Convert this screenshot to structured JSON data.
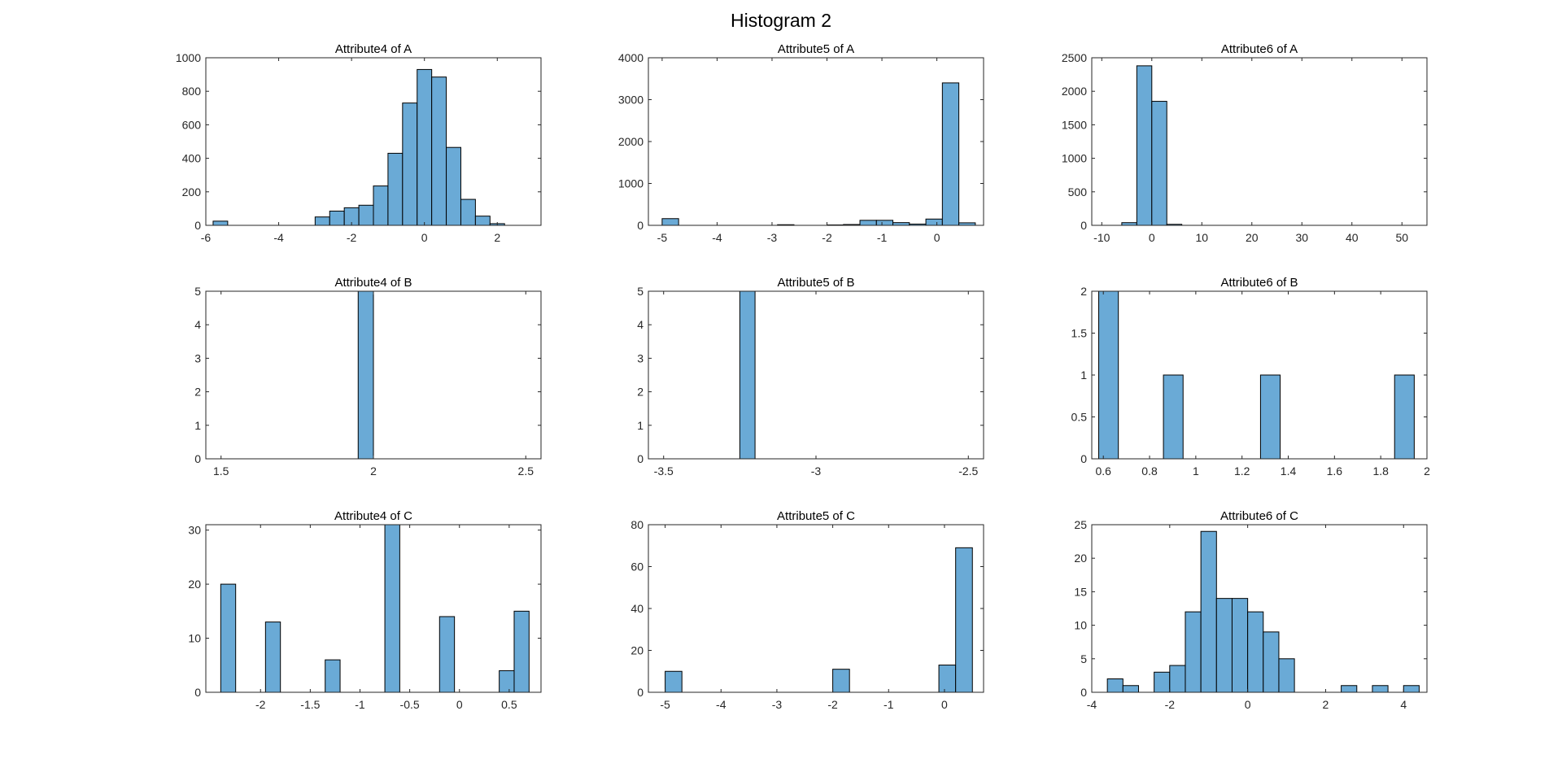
{
  "figure": {
    "title": "Histogram 2",
    "bar_color": "#6aaad6",
    "edge_color": "#000000"
  },
  "chart_data": [
    {
      "type": "bar",
      "title": "Attribute4 of A",
      "xlim": [
        -6,
        3.2
      ],
      "ylim": [
        0,
        1000
      ],
      "xticks": [
        -6,
        -4,
        -2,
        0,
        2
      ],
      "yticks": [
        0,
        200,
        400,
        600,
        800,
        1000
      ],
      "bin_width": 0.4,
      "bin_edges": [
        -5.8,
        -3.0,
        -2.6,
        -2.2,
        -1.8,
        -1.4,
        -1.0,
        -0.6,
        -0.2,
        0.2,
        0.6,
        1.0,
        1.4,
        1.8,
        2.6
      ],
      "values": [
        25,
        50,
        85,
        105,
        120,
        235,
        430,
        730,
        930,
        885,
        465,
        155,
        55,
        10
      ]
    },
    {
      "type": "bar",
      "title": "Attribute5 of A",
      "xlim": [
        -5.25,
        0.85
      ],
      "ylim": [
        0,
        4000
      ],
      "xticks": [
        -5,
        -4,
        -3,
        -2,
        -1,
        0
      ],
      "yticks": [
        0,
        1000,
        2000,
        3000,
        4000
      ],
      "bin_width": 0.3,
      "bin_edges": [
        -5.0,
        -2.9,
        -2.0,
        -1.7,
        -1.4,
        -1.1,
        -0.8,
        -0.5,
        -0.2,
        0.1,
        0.4
      ],
      "values": [
        160,
        15,
        10,
        20,
        120,
        120,
        65,
        30,
        150,
        3400,
        60
      ]
    },
    {
      "type": "bar",
      "title": "Attribute6 of A",
      "xlim": [
        -12,
        55
      ],
      "ylim": [
        0,
        2500
      ],
      "xticks": [
        -10,
        0,
        10,
        20,
        30,
        40,
        50
      ],
      "yticks": [
        0,
        500,
        1000,
        1500,
        2000,
        2500
      ],
      "bin_width": 3,
      "bin_edges": [
        -6,
        -3,
        0,
        3
      ],
      "values": [
        40,
        2380,
        1850,
        15
      ]
    },
    {
      "type": "bar",
      "title": "Attribute4 of B",
      "xlim": [
        1.45,
        2.55
      ],
      "ylim": [
        0,
        5
      ],
      "xticks": [
        1.5,
        2,
        2.5
      ],
      "yticks": [
        0,
        1,
        2,
        3,
        4,
        5
      ],
      "bin_width": 0.05,
      "bin_edges": [
        1.95
      ],
      "values": [
        5
      ]
    },
    {
      "type": "bar",
      "title": "Attribute5 of B",
      "xlim": [
        -3.55,
        -2.45
      ],
      "ylim": [
        0,
        5
      ],
      "xticks": [
        -3.5,
        -3,
        -2.5
      ],
      "yticks": [
        0,
        1,
        2,
        3,
        4,
        5
      ],
      "bin_width": 0.05,
      "bin_edges": [
        -3.25
      ],
      "values": [
        5
      ]
    },
    {
      "type": "bar",
      "title": "Attribute6 of B",
      "xlim": [
        0.55,
        2.0
      ],
      "ylim": [
        0,
        2
      ],
      "xticks": [
        0.6,
        0.8,
        1,
        1.2,
        1.4,
        1.6,
        1.8,
        2
      ],
      "yticks": [
        0,
        0.5,
        1,
        1.5,
        2
      ],
      "bin_width": 0.085,
      "bin_edges": [
        0.58,
        0.86,
        1.28,
        1.86
      ],
      "values": [
        2,
        1,
        1,
        1
      ]
    },
    {
      "type": "bar",
      "title": "Attribute4 of C",
      "xlim": [
        -2.55,
        0.82
      ],
      "ylim": [
        0,
        31
      ],
      "xticks": [
        -2,
        -1.5,
        -1,
        -0.5,
        0,
        0.5
      ],
      "yticks": [
        0,
        10,
        20,
        30
      ],
      "bin_width": 0.15,
      "bin_edges": [
        -2.4,
        -1.95,
        -1.35,
        -0.75,
        -0.2,
        0.4,
        0.55
      ],
      "values": [
        20,
        13,
        6,
        31,
        14,
        4,
        15
      ]
    },
    {
      "type": "bar",
      "title": "Attribute5 of C",
      "xlim": [
        -5.3,
        0.7
      ],
      "ylim": [
        0,
        80
      ],
      "xticks": [
        -5,
        -4,
        -3,
        -2,
        -1,
        0
      ],
      "yticks": [
        0,
        20,
        40,
        60,
        80
      ],
      "bin_width": 0.3,
      "bin_edges": [
        -5.0,
        -2.0,
        -0.1,
        0.2
      ],
      "values": [
        10,
        11,
        13,
        69
      ]
    },
    {
      "type": "bar",
      "title": "Attribute6 of C",
      "xlim": [
        -4,
        4.6
      ],
      "ylim": [
        0,
        25
      ],
      "xticks": [
        -4,
        -2,
        0,
        2,
        4
      ],
      "yticks": [
        0,
        5,
        10,
        15,
        20,
        25
      ],
      "bin_width": 0.4,
      "bin_edges": [
        -3.6,
        -3.2,
        -2.4,
        -2.0,
        -1.6,
        -1.2,
        -0.8,
        -0.4,
        0.0,
        0.4,
        0.8,
        2.4,
        3.2,
        4.0
      ],
      "values": [
        2,
        1,
        3,
        4,
        12,
        24,
        14,
        14,
        12,
        9,
        5,
        1,
        1,
        1
      ]
    }
  ]
}
